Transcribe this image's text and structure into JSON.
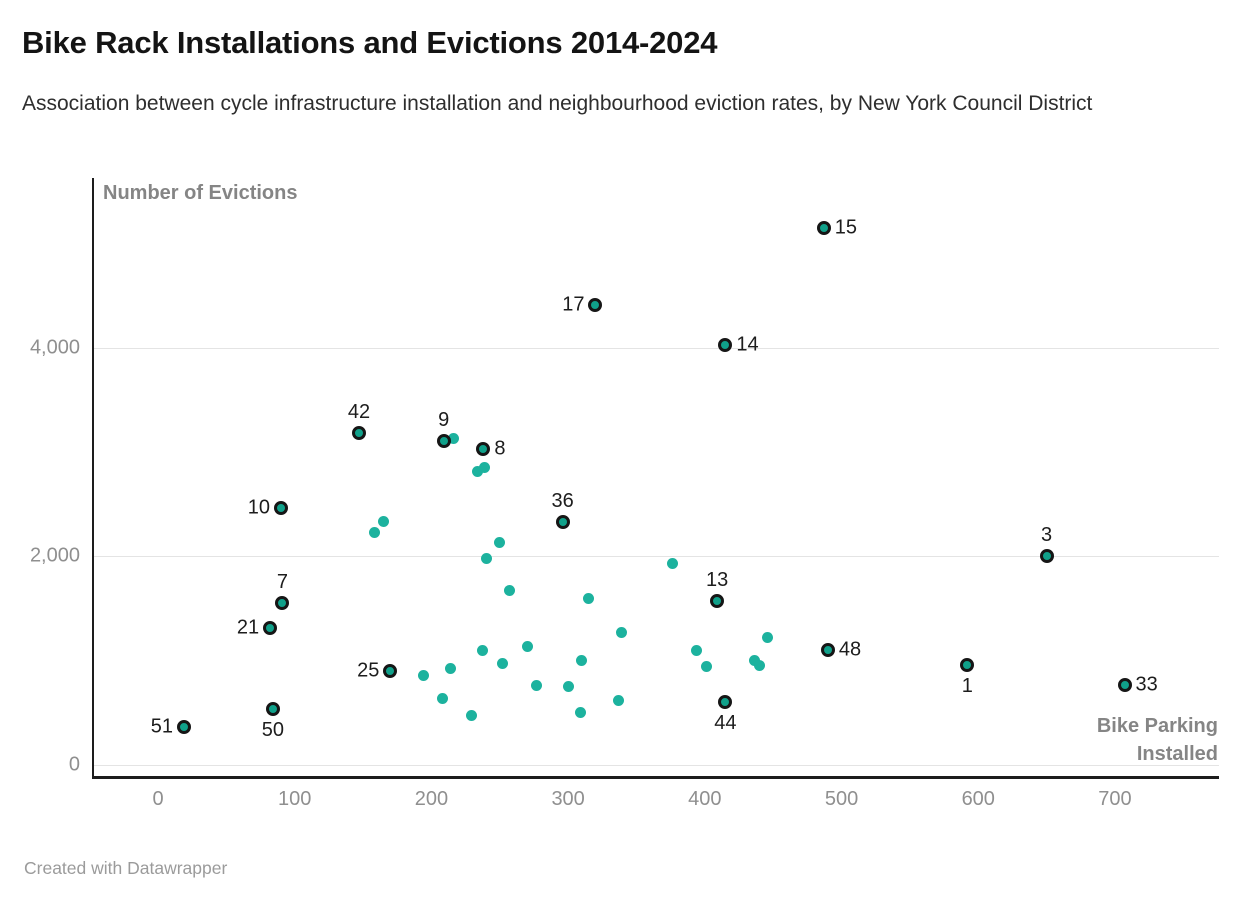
{
  "header": {
    "title": "Bike Rack Installations and Evictions 2014-2024",
    "subtitle": "Association between cycle infrastructure installation and neighbourhood eviction rates, by New York Council District"
  },
  "footer": {
    "credit": "Created with Datawrapper"
  },
  "chart_data": {
    "type": "scatter",
    "title": "Bike Rack Installations and Evictions 2014-2024",
    "subtitle": "Association between cycle infrastructure installation and neighbourhood eviction rates, by New York Council District",
    "ylabel": "Number of Evictions",
    "xlabel_line1": "Bike Parking",
    "xlabel_line2": "Installed",
    "grid": "horizontal-only",
    "legend": "none",
    "xlim": [
      -48,
      776
    ],
    "ylim": [
      -110,
      5630
    ],
    "x_ticks": [
      {
        "value": 0,
        "label": "0"
      },
      {
        "value": 100,
        "label": "100"
      },
      {
        "value": 200,
        "label": "200"
      },
      {
        "value": 300,
        "label": "300"
      },
      {
        "value": 400,
        "label": "400"
      },
      {
        "value": 500,
        "label": "500"
      },
      {
        "value": 600,
        "label": "600"
      },
      {
        "value": 700,
        "label": "700"
      }
    ],
    "y_ticks": [
      {
        "value": 0,
        "label": "0"
      },
      {
        "value": 2000,
        "label": "2,000"
      },
      {
        "value": 4000,
        "label": "4,000"
      }
    ],
    "colors": {
      "point_fill_labeled": "#10a18a",
      "point_stroke_labeled": "#161616",
      "point_fill_small": "#1cb29e",
      "gridline": "#e4e4e4",
      "axis_line": "#1d1d1d",
      "tick_text": "#8f8f8f",
      "axis_title_text": "#858585",
      "label_text": "#1d1d1d"
    },
    "labeled_points": [
      {
        "district": "15",
        "x": 487,
        "y": 5150,
        "label_pos": "right"
      },
      {
        "district": "17",
        "x": 320,
        "y": 4410,
        "label_pos": "left"
      },
      {
        "district": "14",
        "x": 415,
        "y": 4030,
        "label_pos": "right"
      },
      {
        "district": "42",
        "x": 147,
        "y": 3180,
        "label_pos": "above"
      },
      {
        "district": "9",
        "x": 209,
        "y": 3110,
        "label_pos": "above"
      },
      {
        "district": "8",
        "x": 238,
        "y": 3030,
        "label_pos": "right"
      },
      {
        "district": "10",
        "x": 90,
        "y": 2460,
        "label_pos": "left"
      },
      {
        "district": "36",
        "x": 296,
        "y": 2330,
        "label_pos": "above"
      },
      {
        "district": "3",
        "x": 650,
        "y": 2000,
        "label_pos": "above"
      },
      {
        "district": "13",
        "x": 409,
        "y": 1570,
        "label_pos": "above"
      },
      {
        "district": "7",
        "x": 91,
        "y": 1550,
        "label_pos": "above"
      },
      {
        "district": "21",
        "x": 82,
        "y": 1310,
        "label_pos": "left"
      },
      {
        "district": "48",
        "x": 490,
        "y": 1100,
        "label_pos": "right"
      },
      {
        "district": "1",
        "x": 592,
        "y": 960,
        "label_pos": "below"
      },
      {
        "district": "25",
        "x": 170,
        "y": 900,
        "label_pos": "left"
      },
      {
        "district": "33",
        "x": 707,
        "y": 770,
        "label_pos": "right"
      },
      {
        "district": "44",
        "x": 415,
        "y": 600,
        "label_pos": "below"
      },
      {
        "district": "50",
        "x": 84,
        "y": 540,
        "label_pos": "below"
      },
      {
        "district": "51",
        "x": 19,
        "y": 365,
        "label_pos": "left"
      }
    ],
    "unlabeled_points": [
      [
        216,
        3130
      ],
      [
        234,
        2815
      ],
      [
        239,
        2855
      ],
      [
        165,
        2330
      ],
      [
        158,
        2230
      ],
      [
        250,
        2130
      ],
      [
        240,
        1980
      ],
      [
        376,
        1930
      ],
      [
        257,
        1670
      ],
      [
        315,
        1600
      ],
      [
        339,
        1270
      ],
      [
        446,
        1220
      ],
      [
        270,
        1140
      ],
      [
        237,
        1100
      ],
      [
        394,
        1100
      ],
      [
        310,
        1000
      ],
      [
        436,
        1000
      ],
      [
        252,
        970
      ],
      [
        440,
        950
      ],
      [
        401,
        940
      ],
      [
        214,
        930
      ],
      [
        194,
        860
      ],
      [
        277,
        760
      ],
      [
        300,
        750
      ],
      [
        208,
        640
      ],
      [
        337,
        620
      ],
      [
        309,
        500
      ],
      [
        229,
        470
      ]
    ]
  }
}
